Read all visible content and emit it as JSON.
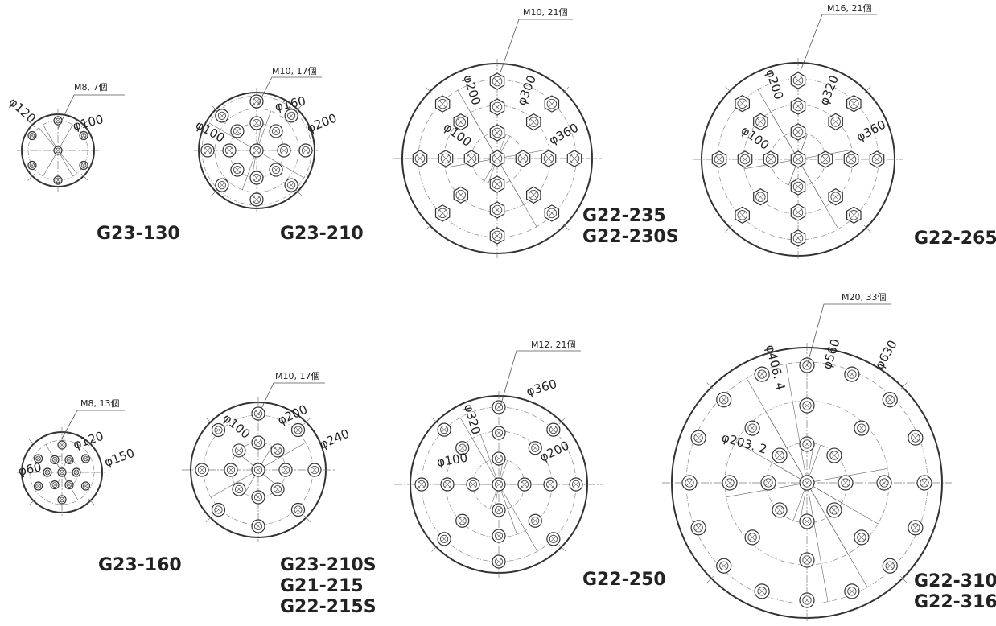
{
  "diagrams": [
    {
      "id": "d1",
      "models": [
        "G23-130"
      ],
      "spec": "M8, 7個",
      "dims": [
        "φ120",
        "φ100"
      ]
    },
    {
      "id": "d2",
      "models": [
        "G23-210"
      ],
      "spec": "M10, 17個",
      "dims": [
        "φ100",
        "φ160",
        "φ200"
      ]
    },
    {
      "id": "d3",
      "models": [
        "G22-235",
        "G22-230S"
      ],
      "spec": "M10, 21個",
      "dims": [
        "φ200",
        "φ300",
        "φ100",
        "φ360"
      ]
    },
    {
      "id": "d4",
      "models": [
        "G22-265"
      ],
      "spec": "M16, 21個",
      "dims": [
        "φ200",
        "φ320",
        "φ100",
        "φ360"
      ]
    },
    {
      "id": "d5",
      "models": [
        "G23-160"
      ],
      "spec": "M8, 13個",
      "dims": [
        "φ120",
        "φ150",
        "φ60"
      ]
    },
    {
      "id": "d6",
      "models": [
        "G23-210S",
        "G21-215",
        "G22-215S"
      ],
      "spec": "M10, 17個",
      "dims": [
        "φ100",
        "φ200",
        "φ240"
      ]
    },
    {
      "id": "d7",
      "models": [
        "G22-250"
      ],
      "spec": "M12, 21個",
      "dims": [
        "φ360",
        "φ320",
        "φ200",
        "φ100"
      ]
    },
    {
      "id": "d8",
      "models": [
        "G22-310",
        "G22-316"
      ],
      "spec": "M20, 33個",
      "dims": [
        "φ406. 4",
        "φ560",
        "φ630",
        "φ203. 2"
      ]
    }
  ]
}
